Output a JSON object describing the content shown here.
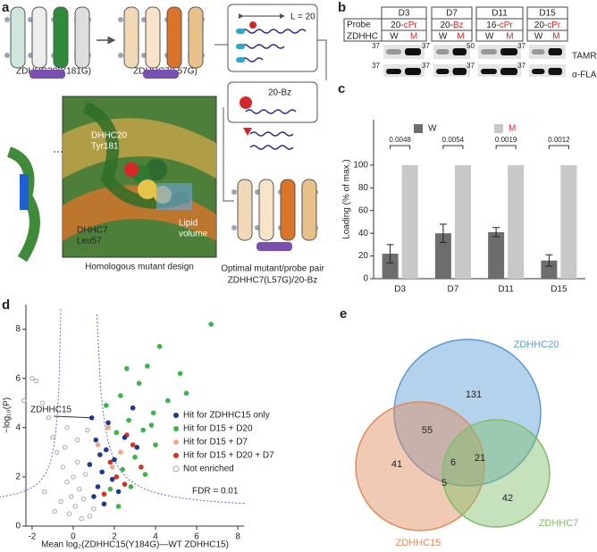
{
  "panel_labels": [
    "a",
    "b",
    "c",
    "d",
    "e"
  ],
  "panel_a": {
    "mutant_1": "ZDHHC20(Y181G)",
    "mutant_2": "ZDHHC7(L57G)",
    "residue_1": [
      "DHHC20",
      "Tyr181"
    ],
    "residue_2": [
      "DHHC7",
      "Leu57"
    ],
    "pocket": [
      "Lipid",
      "volume"
    ],
    "structure_caption": "Homologous mutant design",
    "chain_length": "L = 20",
    "probe": "20-Bz",
    "result_caption": [
      "Optimal mutant/probe pair",
      "ZDHHC7(L57G)/20-Bz"
    ]
  },
  "panel_b": {
    "columns": [
      "D3",
      "D7",
      "D11",
      "D15"
    ],
    "row_labels": [
      "Probe",
      "ZDHHC"
    ],
    "probes": [
      {
        "chain": "20-",
        "group": "cPr"
      },
      {
        "chain": "20-",
        "group": "Bz"
      },
      {
        "chain": "16-",
        "group": "cPr"
      },
      {
        "chain": "20-",
        "group": "cPr"
      }
    ],
    "lanes": [
      "W",
      "M"
    ],
    "markers": [
      [
        "37",
        "37"
      ],
      [
        "37",
        "37"
      ],
      [
        "50",
        "37"
      ],
      [
        "37",
        "37"
      ]
    ],
    "blot_labels": [
      "TAMRA",
      "α-FLAG"
    ]
  },
  "chart_data": [
    {
      "type": "bar",
      "y_label": "Loading (% of max.)",
      "categories": [
        "D3",
        "D7",
        "D11",
        "D15"
      ],
      "series": [
        {
          "name": "W",
          "color": "#6d6d6d",
          "label_color": "#222222",
          "values": [
            22,
            40,
            41,
            16
          ],
          "errors": [
            8,
            8,
            4,
            5
          ]
        },
        {
          "name": "M",
          "color": "#c8c8c8",
          "label_color": "#d62728",
          "values": [
            100,
            100,
            100,
            100
          ]
        }
      ],
      "ylim": [
        0,
        140
      ],
      "yticks": [
        0,
        20,
        40,
        60,
        80,
        100
      ],
      "annotations": [
        "0.0048",
        "0.0054",
        "0.0019",
        "0.0012"
      ]
    },
    {
      "type": "scatter",
      "x_label": "Mean log₂(ZDHHC15(Y184G)—WT ZDHHC15)",
      "y_label": "−log₁₀(P)",
      "xlim": [
        -2.3,
        8.3
      ],
      "xticks": [
        -2,
        0,
        2,
        4,
        6,
        8
      ],
      "ylim": [
        0,
        9
      ],
      "yticks": [
        0,
        2,
        4,
        6,
        8
      ],
      "annotations": [
        "ZDHHC15",
        "FDR = 0.01"
      ],
      "series": [
        {
          "name": "Hit for ZDHHC15 only",
          "color": "#1f3a93",
          "x": [
            0.9,
            1.1,
            1.3,
            1.6,
            0.8,
            1.4,
            2.0,
            1.2,
            1.9,
            2.5,
            1.7,
            2.9,
            1.0,
            2.2,
            1.5,
            3.1
          ],
          "values": [
            4.4,
            3.5,
            2.9,
            3.1,
            2.5,
            2.2,
            2.7,
            1.6,
            1.9,
            3.6,
            4.2,
            4.8,
            1.2,
            1.4,
            0.9,
            3.2
          ]
        },
        {
          "name": "Hit for D15 + D20",
          "color": "#3ab54a",
          "x": [
            6.7,
            4.2,
            3.6,
            5.2,
            5.5,
            2.6,
            3.2,
            4.6,
            2.3,
            3.9,
            2.7,
            3.4,
            2.1,
            4.0,
            3.0,
            2.4,
            3.5,
            1.8,
            2.8,
            2.2,
            1.6,
            3.8
          ],
          "values": [
            8.2,
            7.3,
            6.5,
            6.2,
            5.4,
            6.4,
            5.8,
            5.1,
            5.3,
            4.6,
            4.3,
            3.9,
            3.8,
            3.3,
            2.8,
            2.3,
            2.1,
            1.5,
            1.6,
            0.8,
            4.9,
            4.1
          ]
        },
        {
          "name": "Hit for D15 + D7",
          "color": "#f4a58a",
          "x": [
            1.7,
            1.2,
            2.3,
            1.9
          ],
          "values": [
            4.0,
            3.3,
            3.0,
            2.4
          ]
        },
        {
          "name": "Hit for D15 + D20 + D7",
          "color": "#d7301f",
          "x": [
            2.6,
            2.9,
            1.8,
            2.1,
            3.3,
            2.5,
            1.5
          ],
          "values": [
            3.7,
            3.3,
            2.6,
            2.0,
            2.4,
            1.7,
            1.3
          ]
        },
        {
          "name": "Not enriched",
          "color": "#aaaaaa",
          "marker": "hollow",
          "x": [
            -2.0,
            -1.8,
            -1.5,
            -1.2,
            -2.4,
            -1.0,
            -0.8,
            -0.5,
            -0.3,
            -0.1,
            0.1,
            0.3,
            0.2,
            -0.2,
            0.4,
            0.0,
            -0.6,
            0.5,
            0.6,
            -0.4,
            0.2,
            -1.4,
            0.8,
            -0.9,
            1.0,
            -0.3,
            0.7
          ],
          "values": [
            6.0,
            5.9,
            5.0,
            4.4,
            5.1,
            3.6,
            3.0,
            2.4,
            1.8,
            1.2,
            0.8,
            1.5,
            2.6,
            0.5,
            0.3,
            2.0,
            1.0,
            1.1,
            2.1,
            3.2,
            3.5,
            1.4,
            0.4,
            0.6,
            0.7,
            4.0,
            3.9
          ]
        }
      ]
    },
    {
      "type": "venn",
      "sets": [
        {
          "name": "ZDHHC20",
          "color": "#5b9bd5"
        },
        {
          "name": "ZDHHC15",
          "color": "#e08a5c"
        },
        {
          "name": "ZDHHC7",
          "color": "#7fbf6a"
        }
      ],
      "values": [
        131,
        55,
        41,
        6,
        21,
        5,
        42
      ]
    }
  ]
}
